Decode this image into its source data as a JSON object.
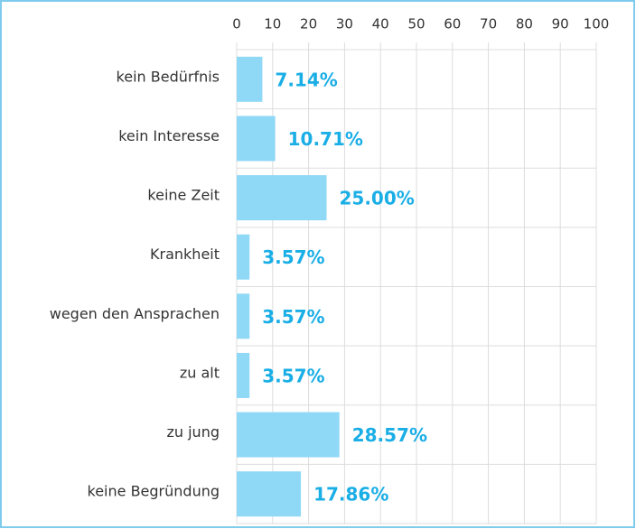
{
  "chart_data": {
    "type": "bar",
    "orientation": "horizontal",
    "categories": [
      "kein Bedürfnis",
      "kein Interesse",
      "keine Zeit",
      "Krankheit",
      "wegen den Ansprachen",
      "zu alt",
      "zu jung",
      "keine Begründung"
    ],
    "values": [
      7.14,
      10.71,
      25.0,
      3.57,
      3.57,
      3.57,
      28.57,
      17.86
    ],
    "value_labels": [
      "7.14%",
      "10.71%",
      "25.00%",
      "3.57%",
      "3.57%",
      "3.57%",
      "28.57%",
      "17.86%"
    ],
    "color": "#8fd8f6",
    "label_color": "#1aaee6",
    "xlim": [
      0,
      100
    ],
    "xticks": [
      0,
      10,
      20,
      30,
      40,
      50,
      60,
      70,
      80,
      90,
      100
    ],
    "grid": true
  }
}
